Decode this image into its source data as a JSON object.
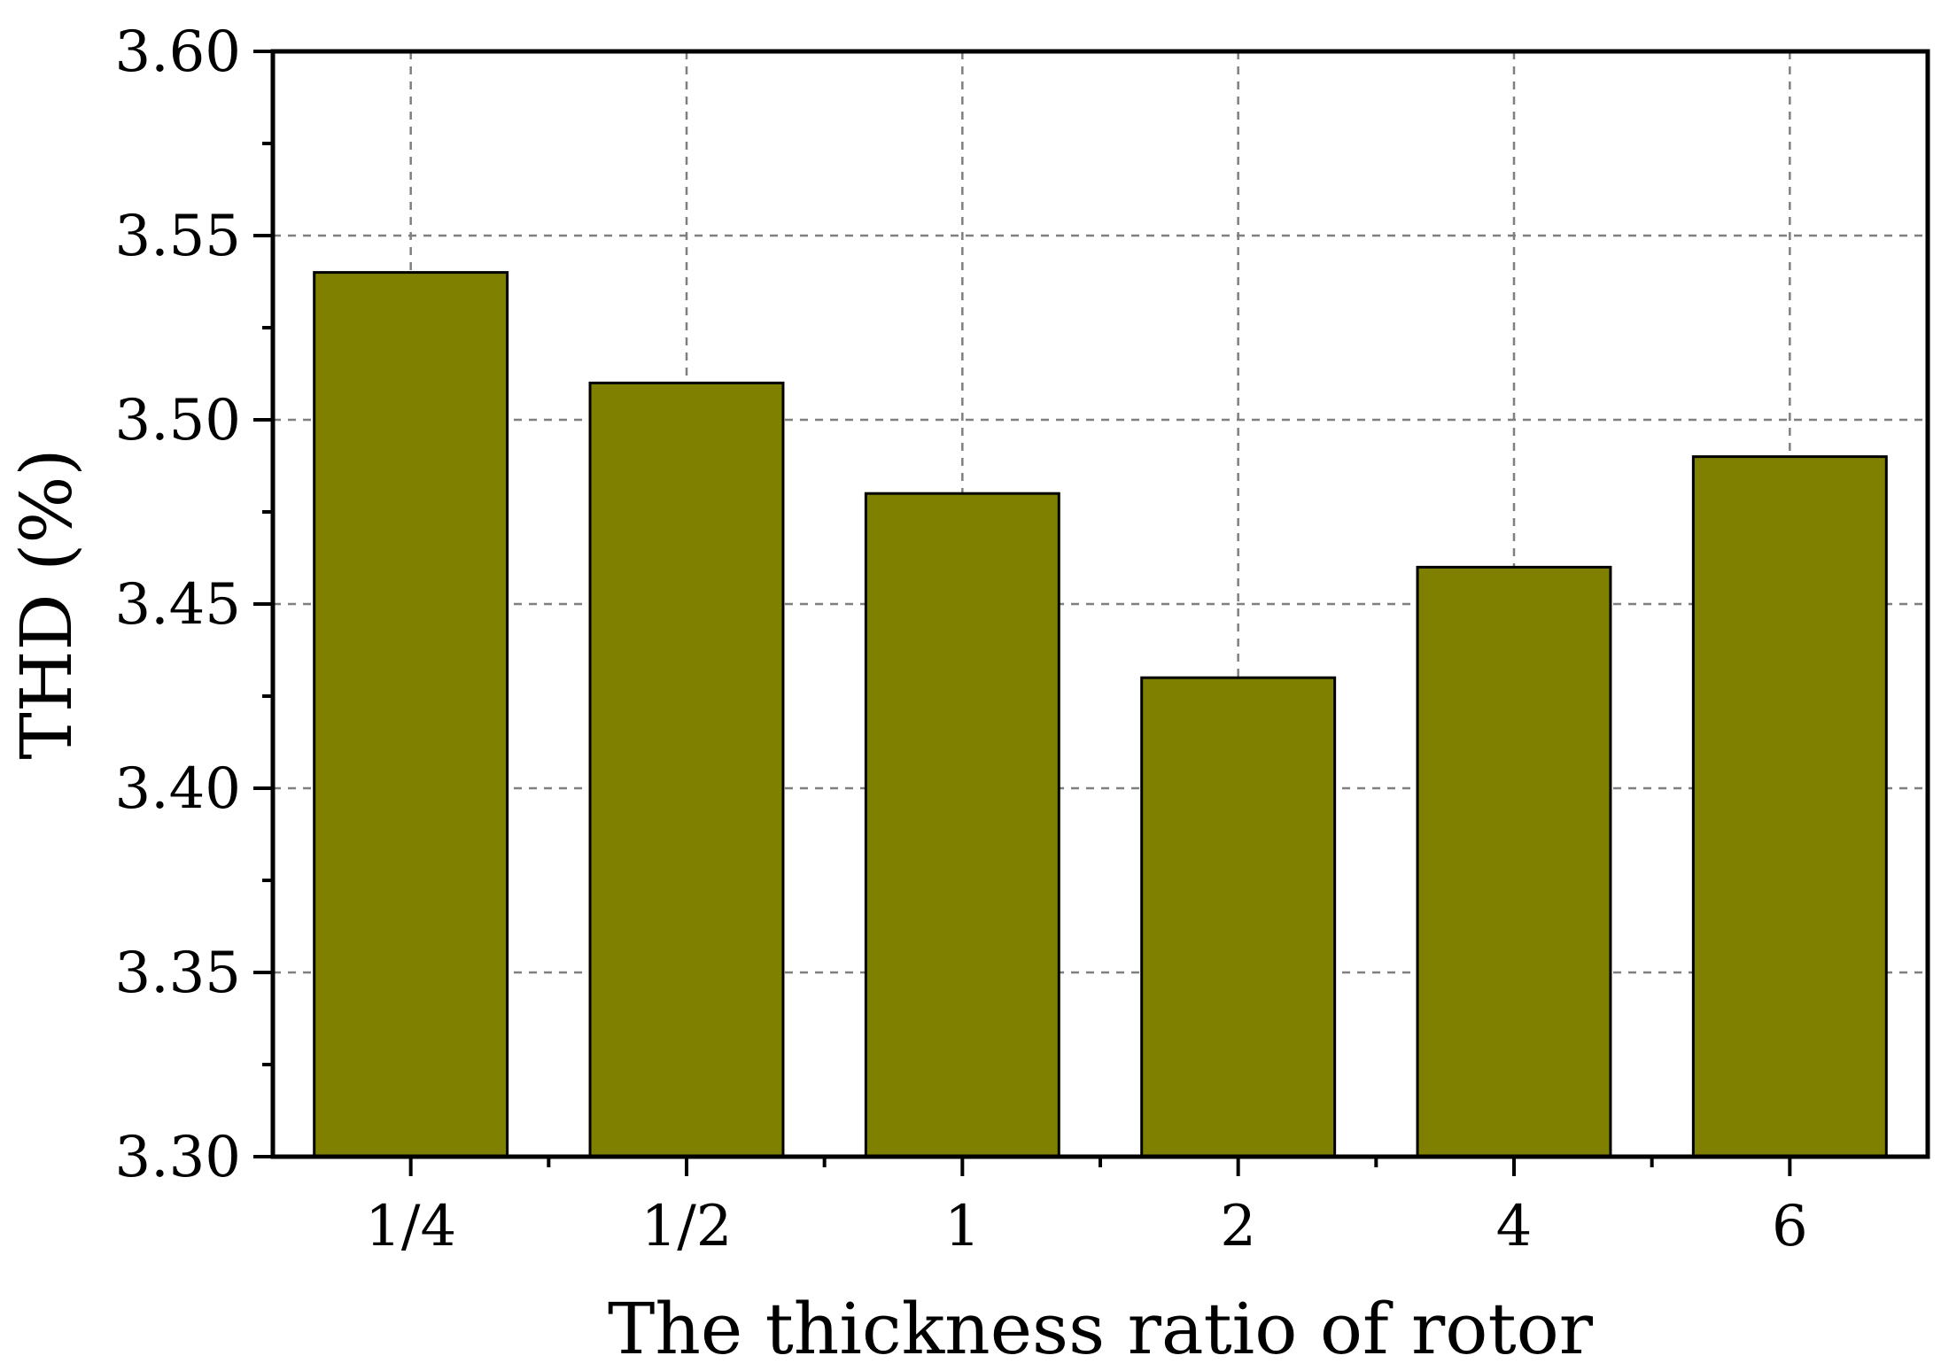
{
  "chart_data": {
    "type": "bar",
    "title": "",
    "xlabel": "The thickness ratio of rotor",
    "ylabel": "THD (%)",
    "categories": [
      "1/4",
      "1/2",
      "1",
      "2",
      "4",
      "6"
    ],
    "values": [
      3.54,
      3.51,
      3.48,
      3.43,
      3.46,
      3.49
    ],
    "ylim": [
      3.3,
      3.6
    ],
    "yticks": [
      "3.30",
      "3.35",
      "3.40",
      "3.45",
      "3.50",
      "3.55",
      "3.60"
    ],
    "grid": true,
    "legend": "none",
    "bar_color": "#808000"
  }
}
